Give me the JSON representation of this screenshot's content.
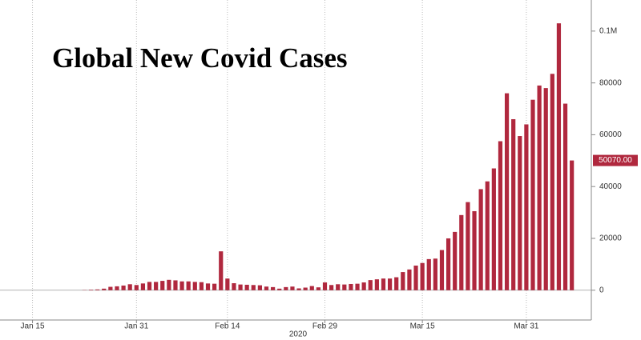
{
  "chart_data": {
    "type": "bar",
    "title": "Global New Covid Cases",
    "x_label": "2020",
    "color": "#b0283e",
    "x": [
      "2020-01-23",
      "2020-01-24",
      "2020-01-25",
      "2020-01-26",
      "2020-01-27",
      "2020-01-28",
      "2020-01-29",
      "2020-01-30",
      "2020-01-31",
      "2020-02-01",
      "2020-02-02",
      "2020-02-03",
      "2020-02-04",
      "2020-02-05",
      "2020-02-06",
      "2020-02-07",
      "2020-02-08",
      "2020-02-09",
      "2020-02-10",
      "2020-02-11",
      "2020-02-12",
      "2020-02-13",
      "2020-02-14",
      "2020-02-15",
      "2020-02-16",
      "2020-02-17",
      "2020-02-18",
      "2020-02-19",
      "2020-02-20",
      "2020-02-21",
      "2020-02-22",
      "2020-02-23",
      "2020-02-24",
      "2020-02-25",
      "2020-02-26",
      "2020-02-27",
      "2020-02-28",
      "2020-02-29",
      "2020-03-01",
      "2020-03-02",
      "2020-03-03",
      "2020-03-04",
      "2020-03-05",
      "2020-03-06",
      "2020-03-07",
      "2020-03-08",
      "2020-03-09",
      "2020-03-10",
      "2020-03-11",
      "2020-03-12",
      "2020-03-13",
      "2020-03-14",
      "2020-03-15",
      "2020-03-16",
      "2020-03-17",
      "2020-03-18",
      "2020-03-19",
      "2020-03-20",
      "2020-03-21",
      "2020-03-22",
      "2020-03-23",
      "2020-03-24",
      "2020-03-25",
      "2020-03-26",
      "2020-03-27",
      "2020-03-28",
      "2020-03-29",
      "2020-03-30",
      "2020-03-31",
      "2020-04-01",
      "2020-04-02",
      "2020-04-03",
      "2020-04-04",
      "2020-04-05",
      "2020-04-06",
      "2020-04-07"
    ],
    "values": [
      100,
      200,
      300,
      600,
      1300,
      1500,
      1800,
      2300,
      2000,
      2600,
      3200,
      3200,
      3600,
      4000,
      3800,
      3400,
      3400,
      3200,
      3100,
      2600,
      2500,
      15000,
      4500,
      2700,
      2200,
      2100,
      2000,
      1900,
      1400,
      1200,
      600,
      1200,
      1400,
      700,
      1000,
      1600,
      1100,
      3000,
      2000,
      2300,
      2200,
      2400,
      2500,
      3000,
      3900,
      4200,
      4500,
      4500,
      5000,
      7000,
      8000,
      9500,
      10500,
      12000,
      12200,
      15500,
      20000,
      22500,
      29000,
      34000,
      30500,
      39000,
      42000,
      47000,
      57500,
      76000,
      66000,
      59500,
      64000,
      73500,
      79000,
      78000,
      83500,
      103000,
      72000,
      50070
    ],
    "value_labels": [
      null,
      null,
      null,
      null,
      null,
      null,
      null,
      null,
      null,
      null,
      null,
      null,
      null,
      null,
      null,
      null,
      null,
      null,
      null,
      null,
      null,
      null,
      null,
      null,
      null,
      null,
      null,
      null,
      null,
      null,
      null,
      null,
      null,
      null,
      null,
      null,
      null,
      null,
      null,
      null,
      null,
      null,
      null,
      null,
      null,
      null,
      null,
      null,
      null,
      null,
      null,
      null,
      null,
      null,
      null,
      null,
      null,
      null,
      null,
      null,
      null,
      null,
      null,
      null,
      null,
      null,
      null,
      null,
      null,
      null,
      null,
      null,
      null,
      null,
      null,
      "50070.00"
    ],
    "xlim": [
      "2020-01-10",
      "2020-04-10"
    ],
    "xticks": [
      {
        "value": "2020-01-15",
        "label": "Jan 15"
      },
      {
        "value": "2020-01-31",
        "label": "Jan 31"
      },
      {
        "value": "2020-02-14",
        "label": "Feb 14"
      },
      {
        "value": "2020-02-29",
        "label": "Feb 29"
      },
      {
        "value": "2020-03-15",
        "label": "Mar 15"
      },
      {
        "value": "2020-03-31",
        "label": "Mar 31"
      }
    ],
    "ylim": [
      -11500,
      112000
    ],
    "yticks": [
      0,
      20000,
      40000,
      60000,
      80000,
      {
        "value": 100000,
        "label": "0.1M"
      }
    ],
    "grid": "x"
  }
}
